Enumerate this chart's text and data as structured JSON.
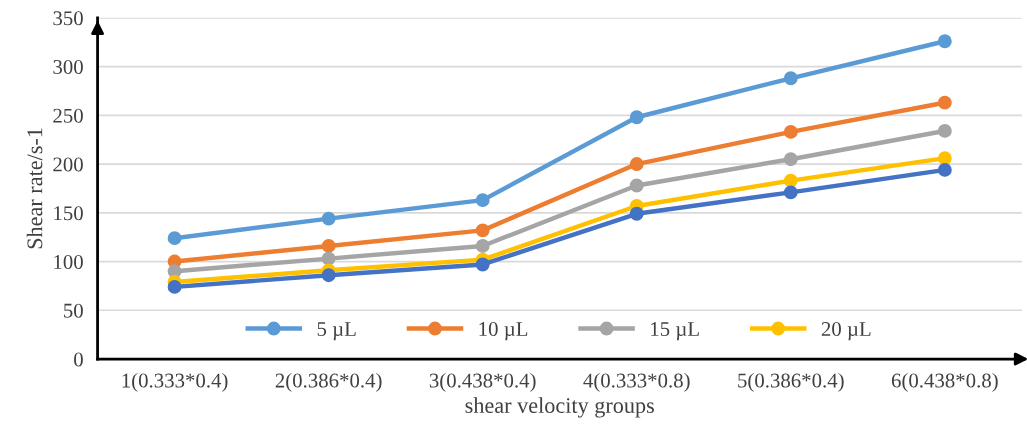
{
  "chart_data": {
    "type": "line",
    "xlabel": "shear velocity groups",
    "ylabel": "Shear rate/s-1",
    "categories": [
      "1(0.333*0.4)",
      "2(0.386*0.4)",
      "3(0.438*0.4)",
      "4(0.333*0.8)",
      "5(0.386*0.4)",
      "6(0.438*0.8)"
    ],
    "series": [
      {
        "name": "5 µL",
        "color": "#5b9bd5",
        "values": [
          124,
          144,
          163,
          248,
          288,
          326
        ]
      },
      {
        "name": "10 µL",
        "color": "#ed7d31",
        "values": [
          100,
          116,
          132,
          200,
          233,
          263
        ]
      },
      {
        "name": "15 µL",
        "color": "#a5a5a5",
        "values": [
          90,
          103,
          116,
          178,
          205,
          234
        ]
      },
      {
        "name": "20 µL",
        "color": "#ffc000",
        "values": [
          79,
          91,
          102,
          157,
          183,
          206
        ]
      },
      {
        "color": "#4472c4",
        "values": [
          74,
          86,
          97,
          149,
          171,
          194
        ]
      }
    ],
    "ylim": [
      0,
      350
    ],
    "yticks": [
      0,
      50,
      100,
      150,
      200,
      250,
      300,
      350
    ],
    "grid": "y",
    "legend": "bottom",
    "marker": "circle",
    "line_style": "solid"
  }
}
